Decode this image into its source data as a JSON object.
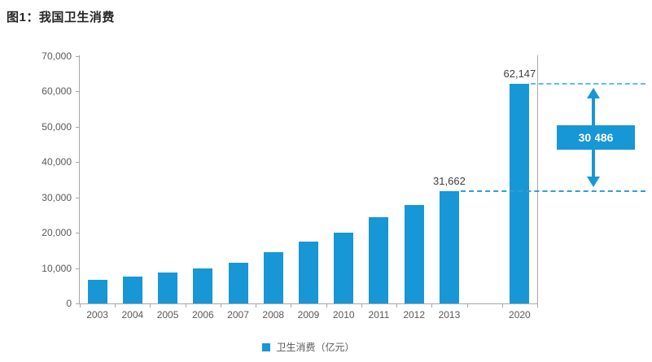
{
  "title": "图1：我国卫生消费",
  "legend": {
    "label": "卫生消费（亿元）"
  },
  "colors": {
    "bar": "#1797D6",
    "dashed_top": "#5FBFE4",
    "dashed_bottom": "#2E9FD6",
    "annotation_fill": "#1797D6",
    "annotation_text": "#FFFFFF",
    "axis": "#A8A8A8",
    "tick_label": "#595959",
    "data_label": "#404040",
    "title_color": "#262626"
  },
  "y_axis": {
    "tick_labels": [
      "0",
      "10,000",
      "20,000",
      "30,000",
      "40,000",
      "50,000",
      "60,000",
      "70,000"
    ],
    "tick_values": [
      0,
      10000,
      20000,
      30000,
      40000,
      50000,
      60000,
      70000
    ]
  },
  "chart_data": {
    "type": "bar",
    "title": "图1：我国卫生消费",
    "categories": [
      "2003",
      "2004",
      "2005",
      "2006",
      "2007",
      "2008",
      "2009",
      "2010",
      "2011",
      "2012",
      "2013",
      "2020"
    ],
    "values": [
      6584,
      7590,
      8660,
      9843,
      11574,
      14535,
      17542,
      19980,
      24346,
      27847,
      31662,
      62147
    ],
    "series": [
      {
        "name": "卫生消费（亿元）",
        "values": [
          6584,
          7590,
          8660,
          9843,
          11574,
          14535,
          17542,
          19980,
          24346,
          27847,
          31662,
          62147
        ]
      }
    ],
    "xlabel": "",
    "ylabel": "",
    "ylim": [
      0,
      70000
    ],
    "grid": false,
    "legend_position": "bottom",
    "gap_slot_before_last_category": true,
    "labeled_points": [
      {
        "category": "2013",
        "value": 31662,
        "label": "31,662"
      },
      {
        "category": "2020",
        "value": 62147,
        "label": "62,147"
      }
    ],
    "difference_annotation": {
      "label": "30,486",
      "value": 30486,
      "from_category": "2013",
      "to_category": "2020"
    }
  }
}
